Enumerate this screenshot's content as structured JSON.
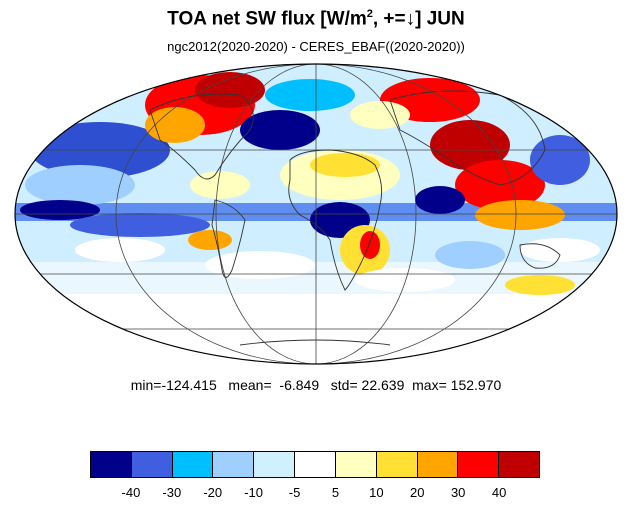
{
  "title": {
    "main": "TOA net SW flux [W/m",
    "sup": "2",
    "rest": ", +=↓]  JUN"
  },
  "subtitle": "ngc2012(2020-2020) - CERES_EBAF((2020-2020))",
  "stats": {
    "min_label": "min=",
    "min": "-124.415",
    "mean_label": "mean=",
    "mean": "-6.849",
    "std_label": "std=",
    "std": "22.639",
    "max_label": "max=",
    "max": "152.970"
  },
  "colorbar": {
    "colors": [
      "#00008b",
      "#3f5fe0",
      "#00bfff",
      "#9fcfff",
      "#cff0ff",
      "#ffffff",
      "#ffffc0",
      "#ffe033",
      "#ffa500",
      "#ff0000",
      "#c00000"
    ],
    "ticks": [
      "-40",
      "-30",
      "-20",
      "-10",
      "-5",
      "5",
      "10",
      "20",
      "30",
      "40"
    ]
  },
  "map": {
    "projection": "mollweide",
    "continents": "coastline-outline",
    "grid": true
  }
}
